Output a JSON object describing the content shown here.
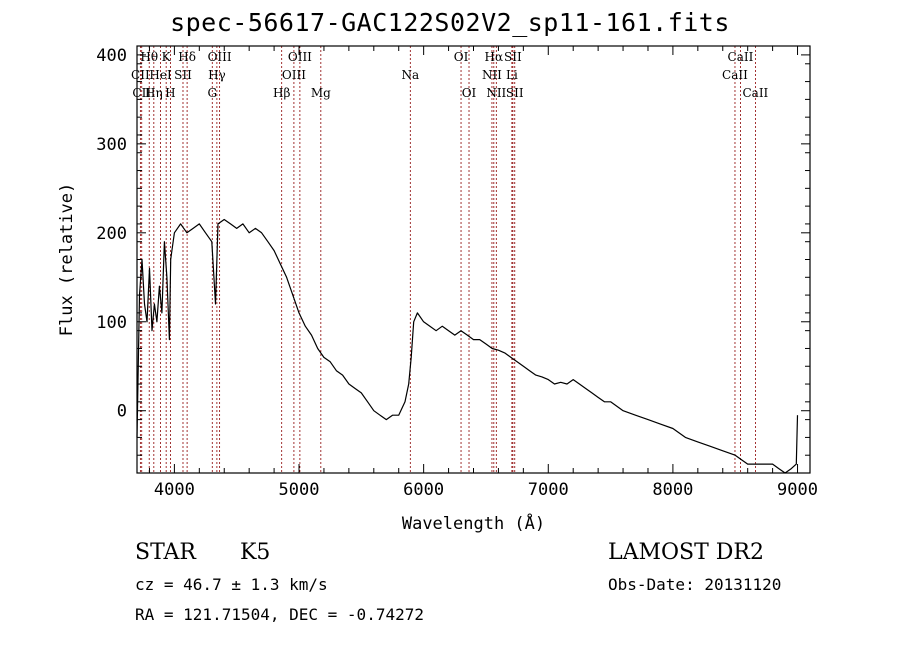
{
  "chart_data": {
    "type": "line",
    "title": "spec-56617-GAC122S02V2_sp11-161.fits",
    "xlabel": "Wavelength (Å)",
    "ylabel": "Flux (relative)",
    "xlim": [
      3700,
      9100
    ],
    "ylim": [
      -70,
      410
    ],
    "xticks": [
      4000,
      5000,
      6000,
      7000,
      8000,
      9000
    ],
    "yticks": [
      0,
      100,
      200,
      300,
      400
    ],
    "grid": false,
    "series": [
      {
        "x": [
          3700,
          3720,
          3740,
          3760,
          3780,
          3800,
          3820,
          3840,
          3860,
          3880,
          3900,
          3920,
          3940,
          3960,
          3970,
          3980,
          4000,
          4050,
          4100,
          4150,
          4200,
          4250,
          4300,
          4330,
          4350,
          4400,
          4450,
          4500,
          4550,
          4600,
          4650,
          4700,
          4750,
          4800,
          4850,
          4900,
          4950,
          5000,
          5050,
          5100,
          5150,
          5200,
          5250,
          5300,
          5350,
          5400,
          5450,
          5500,
          5550,
          5600,
          5650,
          5700,
          5750,
          5800,
          5850,
          5880,
          5900,
          5920,
          5950,
          6000,
          6050,
          6100,
          6150,
          6200,
          6250,
          6300,
          6350,
          6400,
          6450,
          6500,
          6550,
          6600,
          6650,
          6700,
          6750,
          6800,
          6850,
          6900,
          6950,
          7000,
          7050,
          7100,
          7150,
          7200,
          7250,
          7300,
          7350,
          7400,
          7450,
          7500,
          7600,
          7700,
          7800,
          7900,
          8000,
          8100,
          8200,
          8300,
          8400,
          8500,
          8550,
          8600,
          8650,
          8700,
          8750,
          8800,
          8850,
          8900,
          8950,
          8990,
          9000
        ],
        "y": [
          -30,
          130,
          170,
          120,
          100,
          160,
          90,
          120,
          100,
          140,
          110,
          190,
          150,
          80,
          170,
          180,
          200,
          210,
          200,
          205,
          210,
          200,
          190,
          120,
          210,
          215,
          210,
          205,
          210,
          200,
          205,
          200,
          190,
          180,
          165,
          150,
          130,
          110,
          95,
          85,
          70,
          60,
          55,
          45,
          40,
          30,
          25,
          20,
          10,
          0,
          -5,
          -10,
          -5,
          -5,
          10,
          30,
          60,
          100,
          110,
          100,
          95,
          90,
          95,
          90,
          85,
          90,
          85,
          80,
          80,
          75,
          70,
          68,
          65,
          60,
          55,
          50,
          45,
          40,
          38,
          35,
          30,
          32,
          30,
          35,
          30,
          25,
          20,
          15,
          10,
          10,
          0,
          -5,
          -10,
          -15,
          -20,
          -30,
          -35,
          -40,
          -45,
          -50,
          -55,
          -60,
          -60,
          -60,
          -60,
          -60,
          -65,
          -70,
          -65,
          -60,
          -5
        ]
      }
    ],
    "spectral_lines": [
      {
        "label": "Hθ",
        "wl": 3798,
        "row": 1
      },
      {
        "label": "Hη",
        "wl": 3835,
        "row": 3
      },
      {
        "label": "CII",
        "wl": 3727,
        "row": 2
      },
      {
        "label": "CII",
        "wl": 3738,
        "row": 3
      },
      {
        "label": "HeI",
        "wl": 3889,
        "row": 2
      },
      {
        "label": "K",
        "wl": 3934,
        "row": 1
      },
      {
        "label": "H",
        "wl": 3968,
        "row": 3
      },
      {
        "label": "SII",
        "wl": 4069,
        "row": 2
      },
      {
        "label": "Hδ",
        "wl": 4102,
        "row": 1
      },
      {
        "label": "G",
        "wl": 4304,
        "row": 3
      },
      {
        "label": "Hγ",
        "wl": 4341,
        "row": 2
      },
      {
        "label": "OIII",
        "wl": 4363,
        "row": 1
      },
      {
        "label": "Hβ",
        "wl": 4861,
        "row": 3
      },
      {
        "label": "OIII",
        "wl": 4959,
        "row": 2
      },
      {
        "label": "OIII",
        "wl": 5007,
        "row": 1
      },
      {
        "label": "Mg",
        "wl": 5175,
        "row": 3
      },
      {
        "label": "Na",
        "wl": 5893,
        "row": 2
      },
      {
        "label": "OI",
        "wl": 6300,
        "row": 1
      },
      {
        "label": "OI",
        "wl": 6364,
        "row": 3
      },
      {
        "label": "NII",
        "wl": 6548,
        "row": 2
      },
      {
        "label": "Hα",
        "wl": 6563,
        "row": 1
      },
      {
        "label": "NII",
        "wl": 6583,
        "row": 3
      },
      {
        "label": "Li",
        "wl": 6708,
        "row": 2
      },
      {
        "label": "SII",
        "wl": 6716,
        "row": 1
      },
      {
        "label": "SII",
        "wl": 6731,
        "row": 3
      },
      {
        "label": "CaII",
        "wl": 8498,
        "row": 2
      },
      {
        "label": "CaII",
        "wl": 8542,
        "row": 1
      },
      {
        "label": "CaII",
        "wl": 8662,
        "row": 3
      }
    ],
    "line_color": "#000000",
    "marker_color": "#8b0000"
  },
  "info": {
    "object_type": "STAR",
    "subclass": "K5",
    "survey": "LAMOST DR2",
    "redshift_line": "cz = 46.7 ± 1.3 km/s",
    "obs_date_line": "Obs-Date: 20131120",
    "coords_line": "RA = 121.71504, DEC =  -0.74272"
  }
}
